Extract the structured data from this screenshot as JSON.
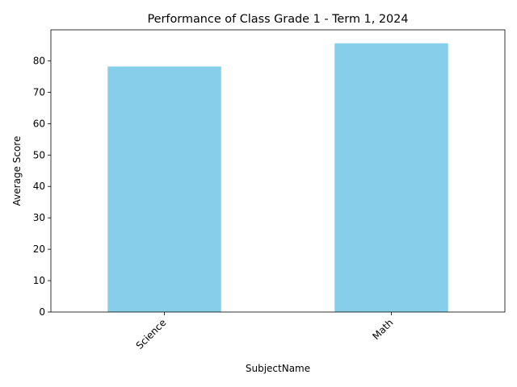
{
  "chart_data": {
    "type": "bar",
    "title": "Performance of Class Grade 1 - Term 1, 2024",
    "xlabel": "SubjectName",
    "ylabel": "Average Score",
    "categories": [
      "Science",
      "Math"
    ],
    "values": [
      78.2,
      85.6
    ],
    "ylim": [
      0,
      89.88
    ],
    "yticks": [
      0,
      10,
      20,
      30,
      40,
      50,
      60,
      70,
      80
    ],
    "xtick_rotation_deg": 45,
    "grid": false,
    "legend": "none",
    "bar_color": "#87CEEB"
  }
}
